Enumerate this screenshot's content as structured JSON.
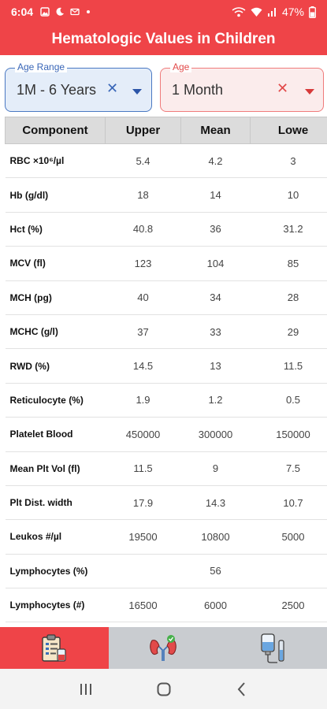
{
  "status": {
    "time": "6:04",
    "battery": "47%"
  },
  "app": {
    "title": "Hematologic Values in Children"
  },
  "selectors": {
    "range": {
      "label": "Age Range",
      "value": "1M - 6 Years",
      "clear": "✕"
    },
    "age": {
      "label": "Age",
      "value": "1 Month",
      "clear": "✕"
    }
  },
  "table": {
    "headers": [
      "Component",
      "Upper",
      "Mean",
      "Lowe"
    ],
    "rows": [
      {
        "component": "RBC ×10⁶/µl",
        "upper": "5.4",
        "mean": "4.2",
        "lower": "3"
      },
      {
        "component": "Hb (g/dl)",
        "upper": "18",
        "mean": "14",
        "lower": "10"
      },
      {
        "component": "Hct (%)",
        "upper": "40.8",
        "mean": "36",
        "lower": "31.2"
      },
      {
        "component": "MCV (fl)",
        "upper": "123",
        "mean": "104",
        "lower": "85"
      },
      {
        "component": "MCH (pg)",
        "upper": "40",
        "mean": "34",
        "lower": "28"
      },
      {
        "component": "MCHC (g/l)",
        "upper": "37",
        "mean": "33",
        "lower": "29"
      },
      {
        "component": "RWD (%)",
        "upper": "14.5",
        "mean": "13",
        "lower": "11.5"
      },
      {
        "component": "Reticulocyte (%)",
        "upper": "1.9",
        "mean": "1.2",
        "lower": "0.5"
      },
      {
        "component": "Platelet Blood",
        "upper": "450000",
        "mean": "300000",
        "lower": "150000"
      },
      {
        "component": "Mean Plt Vol (fl)",
        "upper": "11.5",
        "mean": "9",
        "lower": "7.5"
      },
      {
        "component": "Plt Dist. width",
        "upper": "17.9",
        "mean": "14.3",
        "lower": "10.7"
      },
      {
        "component": "Leukos #/µl",
        "upper": "19500",
        "mean": "10800",
        "lower": "5000"
      },
      {
        "component": "Lymphocytes (%)",
        "upper": "",
        "mean": "56",
        "lower": ""
      },
      {
        "component": "Lymphocytes (#)",
        "upper": "16500",
        "mean": "6000",
        "lower": "2500"
      }
    ]
  },
  "nav": {
    "items": [
      {
        "icon": "clipboard-lab-icon",
        "active": true
      },
      {
        "icon": "kidneys-icon",
        "active": false
      },
      {
        "icon": "iv-drip-icon",
        "active": false
      }
    ]
  },
  "colors": {
    "accent": "#ef4448",
    "range_accent": "#3a67b8",
    "header_bg": "#dcdcdc",
    "nav_bg": "#c9ccd0"
  }
}
